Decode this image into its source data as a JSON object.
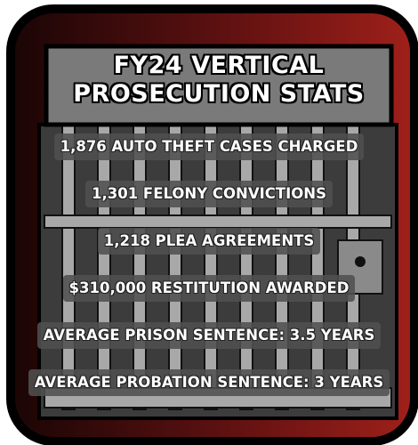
{
  "title": {
    "line1": "FY24 VERTICAL",
    "line2": "PROSECUTION STATS"
  },
  "stats": [
    "1,876 AUTO THEFT CASES CHARGED",
    "1,301 FELONY CONVICTIONS",
    "1,218 PLEA AGREEMENTS",
    "$310,000 RESTITUTION AWARDED",
    "AVERAGE PRISON SENTENCE: 3.5 YEARS",
    "AVERAGE PROBATION SENTENCE: 3 YEARS"
  ]
}
